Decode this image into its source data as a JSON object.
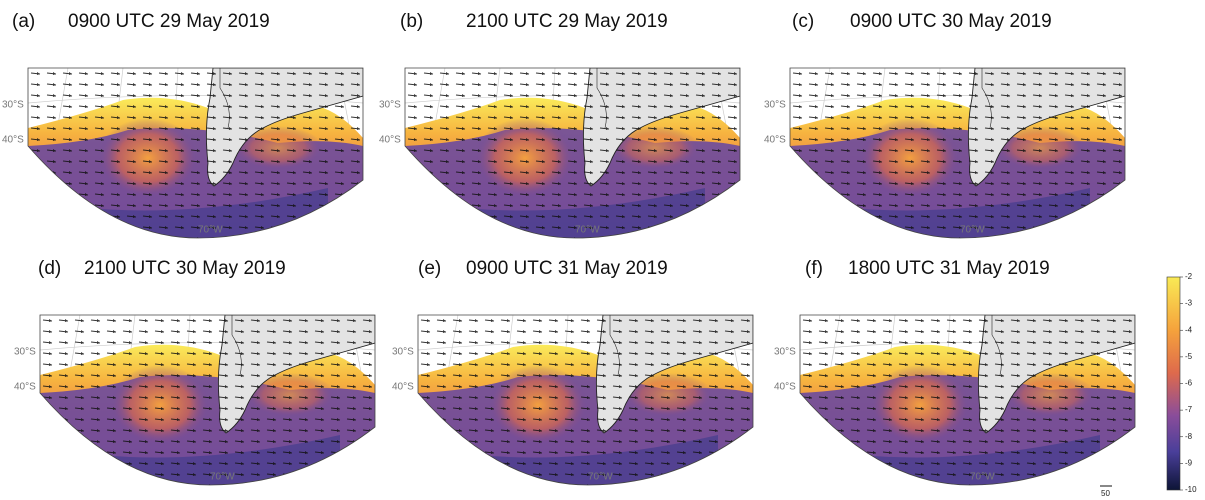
{
  "panels": [
    {
      "label": "(a)",
      "title": "0900 UTC 29 May 2019",
      "lat_labels": [
        "30°S",
        "40°S"
      ],
      "lon_label": "70°W"
    },
    {
      "label": "(b)",
      "title": "2100 UTC 29 May 2019",
      "lat_labels": [
        "30°S",
        "40°S"
      ],
      "lon_label": "70°W"
    },
    {
      "label": "(c)",
      "title": "0900 UTC 30 May 2019",
      "lat_labels": [
        "30°S",
        "40°S"
      ],
      "lon_label": "70°W"
    },
    {
      "label": "(d)",
      "title": "2100 UTC 30 May 2019",
      "lat_labels": [
        "30°S",
        "40°S"
      ],
      "lon_label": "70°W"
    },
    {
      "label": "(e)",
      "title": "0900 UTC 31 May 2019",
      "lat_labels": [
        "30°S",
        "40°S"
      ],
      "lon_label": "70°W"
    },
    {
      "label": "(f)",
      "title": "1800 UTC 31 May 2019",
      "lat_labels": [
        "30°S",
        "40°S"
      ],
      "lon_label": "70°W"
    }
  ],
  "colorbar": {
    "lim": [
      -10,
      -2
    ],
    "ticks": [
      -2,
      -3,
      -4,
      -5,
      -6,
      -7,
      -8,
      -9,
      -10
    ]
  },
  "vector_key": "50"
}
